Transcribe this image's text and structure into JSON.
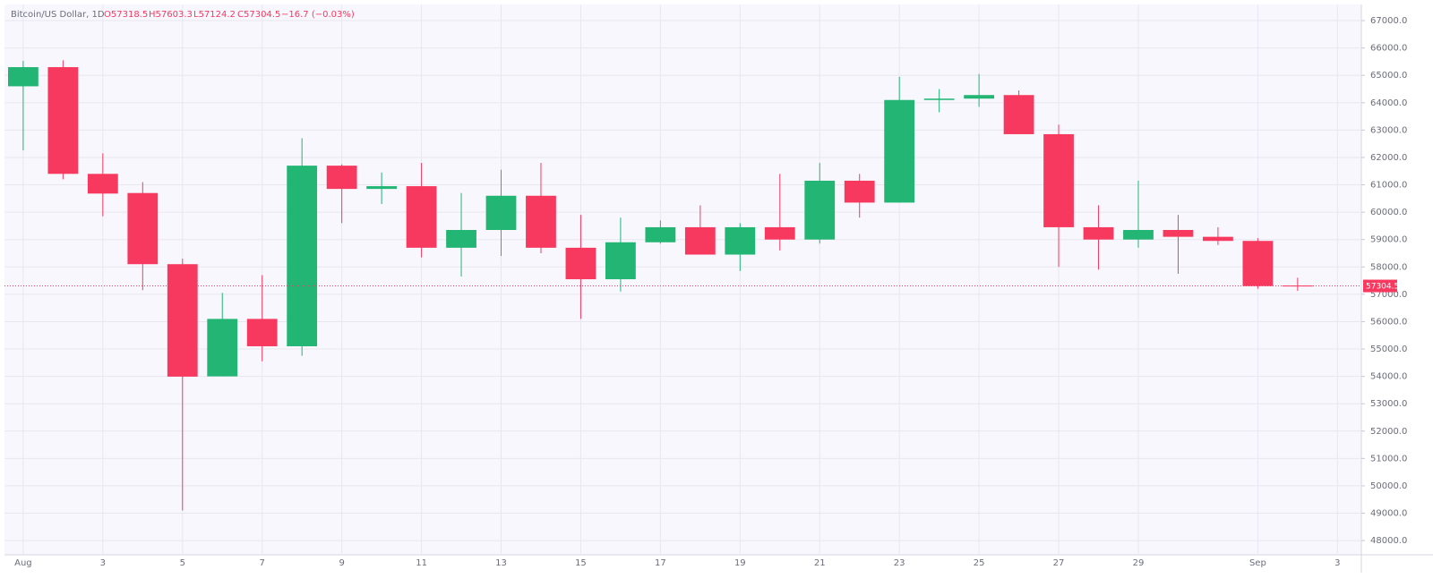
{
  "header": {
    "symbol": "Bitcoin/US Dollar, 1D",
    "open": "O57318.5",
    "high": "H57603.3",
    "low": "L57124.2",
    "close": "C57304.5",
    "change": "−16.7 (−0.03%)"
  },
  "chart_data": {
    "type": "candlestick",
    "up_color": "#22b573",
    "down_color": "#f7395f",
    "open": [
      64600,
      65300,
      61400,
      60700,
      58100,
      54000,
      56100,
      55100,
      61700,
      60850,
      60950,
      58700,
      59350,
      60600,
      58700,
      57550,
      58900,
      59450,
      58450,
      59450,
      59000,
      61150,
      60350,
      64100,
      64150,
      64280,
      62850,
      59450,
      59000,
      59350,
      59100,
      58950,
      57318.5
    ],
    "high": [
      65530,
      65550,
      62150,
      61100,
      58300,
      57050,
      57700,
      62700,
      61750,
      61450,
      61800,
      60700,
      61550,
      61800,
      59900,
      59800,
      59700,
      60250,
      59600,
      61400,
      61800,
      61400,
      64950,
      64500,
      65050,
      64450,
      63200,
      60250,
      61150,
      59900,
      59450,
      59050,
      57603.3
    ],
    "low": [
      62260,
      61200,
      59850,
      57150,
      49100,
      54000,
      54550,
      54750,
      59600,
      60300,
      58350,
      57650,
      58400,
      58500,
      56100,
      57100,
      58850,
      58450,
      57850,
      58600,
      58850,
      59800,
      60350,
      63650,
      63850,
      62850,
      58000,
      57900,
      58700,
      57750,
      58800,
      57200,
      57124.2
    ],
    "close": [
      65300,
      61400,
      60680,
      58100,
      53990,
      56100,
      55100,
      61700,
      60850,
      60950,
      58700,
      59350,
      60600,
      58700,
      57550,
      58900,
      59450,
      58450,
      59450,
      59000,
      61150,
      60350,
      64100,
      64150,
      64280,
      62850,
      59450,
      59000,
      59350,
      59100,
      58950,
      57300,
      57304.5
    ],
    "xlim": [
      -0.47,
      33.6
    ],
    "xticks": [
      {
        "value": 0,
        "label": "Aug"
      },
      {
        "value": 2,
        "label": "3"
      },
      {
        "value": 4,
        "label": "5"
      },
      {
        "value": 6,
        "label": "7"
      },
      {
        "value": 8,
        "label": "9"
      },
      {
        "value": 10,
        "label": "11"
      },
      {
        "value": 12,
        "label": "13"
      },
      {
        "value": 14,
        "label": "15"
      },
      {
        "value": 16,
        "label": "17"
      },
      {
        "value": 18,
        "label": "19"
      },
      {
        "value": 20,
        "label": "21"
      },
      {
        "value": 22,
        "label": "23"
      },
      {
        "value": 24,
        "label": "25"
      },
      {
        "value": 26,
        "label": "27"
      },
      {
        "value": 28,
        "label": "29"
      },
      {
        "value": 31,
        "label": "Sep"
      },
      {
        "value": 33,
        "label": "3"
      }
    ],
    "ylim": [
      47480,
      67590
    ],
    "yticks": [
      {
        "value": 48000,
        "label": "48000.0"
      },
      {
        "value": 49000,
        "label": "49000.0"
      },
      {
        "value": 50000,
        "label": "50000.0"
      },
      {
        "value": 51000,
        "label": "51000.0"
      },
      {
        "value": 52000,
        "label": "52000.0"
      },
      {
        "value": 53000,
        "label": "53000.0"
      },
      {
        "value": 54000,
        "label": "54000.0"
      },
      {
        "value": 55000,
        "label": "55000.0"
      },
      {
        "value": 56000,
        "label": "56000.0"
      },
      {
        "value": 57000,
        "label": "57000.0"
      },
      {
        "value": 58000,
        "label": "58000.0"
      },
      {
        "value": 59000,
        "label": "59000.0"
      },
      {
        "value": 60000,
        "label": "60000.0"
      },
      {
        "value": 61000,
        "label": "61000.0"
      },
      {
        "value": 62000,
        "label": "62000.0"
      },
      {
        "value": 63000,
        "label": "63000.0"
      },
      {
        "value": 64000,
        "label": "64000.0"
      },
      {
        "value": 65000,
        "label": "65000.0"
      },
      {
        "value": 66000,
        "label": "66000.0"
      },
      {
        "value": 67000,
        "label": "67000.0"
      }
    ],
    "last_price": 57304.5,
    "grid": true
  }
}
